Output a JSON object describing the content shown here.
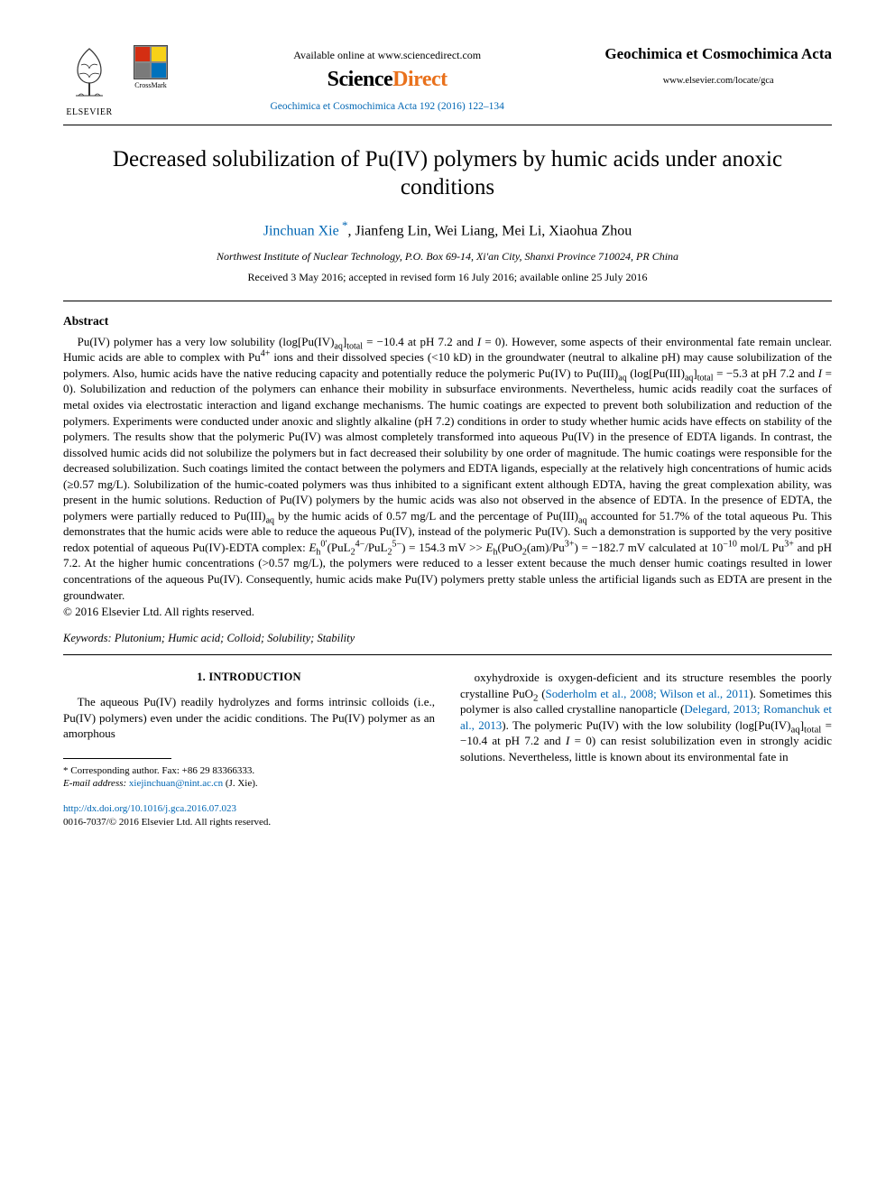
{
  "header": {
    "elsevier_label": "ELSEVIER",
    "crossmark_label": "CrossMark",
    "available_line": "Available online at www.sciencedirect.com",
    "sciencedirect_logo": "ScienceDirect",
    "journal_ref": "Geochimica et Cosmochimica Acta 192 (2016) 122–134",
    "journal_name": "Geochimica et Cosmochimica Acta",
    "journal_link": "www.elsevier.com/locate/gca"
  },
  "title": "Decreased solubilization of Pu(IV) polymers by humic acids under anoxic conditions",
  "authors": {
    "list": "Jinchuan Xie *, Jianfeng Lin, Wei Liang, Mei Li, Xiaohua Zhou",
    "corresponding_name": "Jinchuan Xie"
  },
  "affiliation": "Northwest Institute of Nuclear Technology, P.O. Box 69-14, Xi'an City, Shanxi Province 710024, PR China",
  "dates": "Received 3 May 2016; accepted in revised form 16 July 2016; available online 25 July 2016",
  "abstract": {
    "heading": "Abstract",
    "body_html": "Pu(IV) polymer has a very low solubility (log[Pu(IV)<sub>aq</sub>]<sub>total</sub> = −10.4 at pH 7.2 and <i>I</i> = 0). However, some aspects of their environmental fate remain unclear. Humic acids are able to complex with Pu<sup>4+</sup> ions and their dissolved species (&lt;10 kD) in the groundwater (neutral to alkaline pH) may cause solubilization of the polymers. Also, humic acids have the native reducing capacity and potentially reduce the polymeric Pu(IV) to Pu(III)<sub>aq</sub> (log[Pu(III)<sub>aq</sub>]<sub>total</sub> = −5.3 at pH 7.2 and <i>I</i> = 0). Solubilization and reduction of the polymers can enhance their mobility in subsurface environments. Nevertheless, humic acids readily coat the surfaces of metal oxides via electrostatic interaction and ligand exchange mechanisms. The humic coatings are expected to prevent both solubilization and reduction of the polymers. Experiments were conducted under anoxic and slightly alkaline (pH 7.2) conditions in order to study whether humic acids have effects on stability of the polymers. The results show that the polymeric Pu(IV) was almost completely transformed into aqueous Pu(IV) in the presence of EDTA ligands. In contrast, the dissolved humic acids did not solubilize the polymers but in fact decreased their solubility by one order of magnitude. The humic coatings were responsible for the decreased solubilization. Such coatings limited the contact between the polymers and EDTA ligands, especially at the relatively high concentrations of humic acids (≥0.57 mg/L). Solubilization of the humic-coated polymers was thus inhibited to a significant extent although EDTA, having the great complexation ability, was present in the humic solutions. Reduction of Pu(IV) polymers by the humic acids was also not observed in the absence of EDTA. In the presence of EDTA, the polymers were partially reduced to Pu(III)<sub>aq</sub> by the humic acids of 0.57 mg/L and the percentage of Pu(III)<sub>aq</sub> accounted for 51.7% of the total aqueous Pu. This demonstrates that the humic acids were able to reduce the aqueous Pu(IV), instead of the polymeric Pu(IV). Such a demonstration is supported by the very positive redox potential of aqueous Pu(IV)-EDTA complex: <i>E</i><sub>h</sub><sup>0′</sup>(PuL<sub>2</sub><sup>4−</sup>/PuL<sub>2</sub><sup>5−</sup>) = 154.3 mV &gt;&gt; <i>E</i><sub>h</sub>(PuO<sub>2</sub>(am)/Pu<sup>3+</sup>) = −182.7 mV calculated at 10<sup>−10</sup> mol/L Pu<sup>3+</sup> and pH 7.2. At the higher humic concentrations (&gt;0.57 mg/L), the polymers were reduced to a lesser extent because the much denser humic coatings resulted in lower concentrations of the aqueous Pu(IV). Consequently, humic acids make Pu(IV) polymers pretty stable unless the artificial ligands such as EDTA are present in the groundwater.",
    "copyright": "© 2016 Elsevier Ltd. All rights reserved."
  },
  "keywords": {
    "label": "Keywords:",
    "text": "Plutonium; Humic acid; Colloid; Solubility; Stability"
  },
  "intro": {
    "heading": "1. INTRODUCTION",
    "col1_html": "The aqueous Pu(IV) readily hydrolyzes and forms intrinsic colloids (i.e., Pu(IV) polymers) even under the acidic conditions. The Pu(IV) polymer as an amorphous",
    "col2_html": "oxyhydroxide is oxygen-deficient and its structure resembles the poorly crystalline PuO<sub>2</sub> (<span class='link'>Soderholm et al., 2008; Wilson et al., 2011</span>). Sometimes this polymer is also called crystalline nanoparticle (<span class='link'>Delegard, 2013; Romanchuk et al., 2013</span>). The polymeric Pu(IV) with the low solubility (log[Pu(IV)<sub>aq</sub>]<sub>total</sub> = −10.4 at pH 7.2 and <i>I</i> = 0) can resist solubilization even in strongly acidic solutions. Nevertheless, little is known about its environmental fate in"
  },
  "footnote": {
    "corr_text": "* Corresponding author. Fax: +86 29 83366333.",
    "email_label": "E-mail address:",
    "email": "xiejinchuan@nint.ac.cn",
    "email_author": "(J. Xie)."
  },
  "doi": {
    "url": "http://dx.doi.org/10.1016/j.gca.2016.07.023",
    "issn_line": "0016-7037/© 2016 Elsevier Ltd. All rights reserved."
  },
  "colors": {
    "link": "#0066b3",
    "orange": "#e9711c",
    "text": "#000000",
    "bg": "#ffffff"
  }
}
